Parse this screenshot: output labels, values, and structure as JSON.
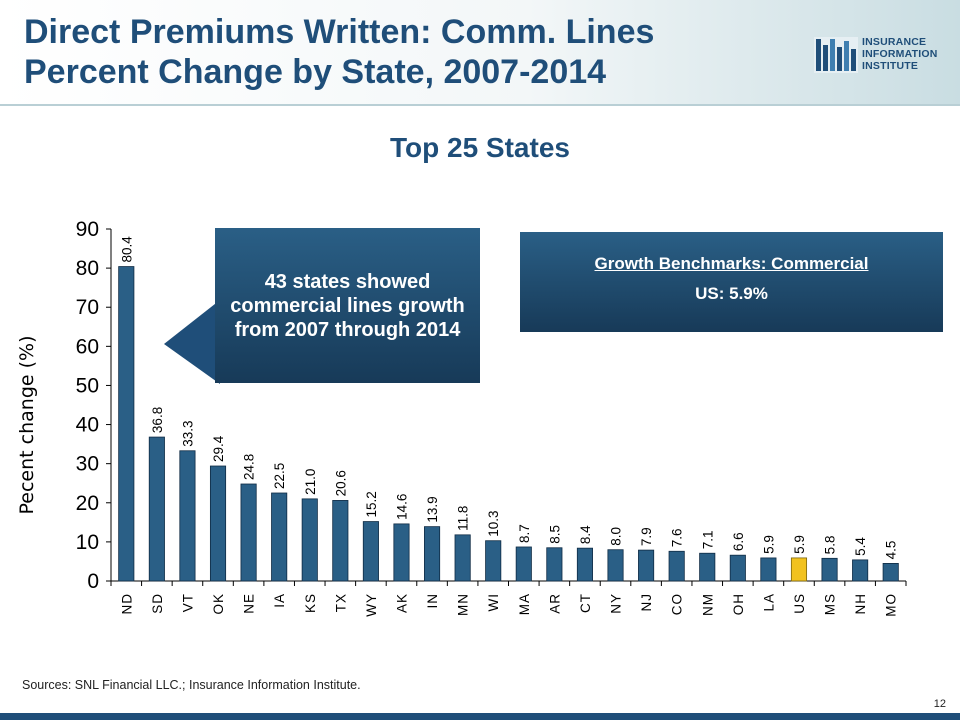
{
  "slide": {
    "title_line1": "Direct Premiums Written: Comm. Lines",
    "title_line2": "Percent Change by State, 2007-2014",
    "subtitle": "Top 25 States",
    "logo_lines": [
      "INSURANCE",
      "INFORMATION",
      "INSTITUTE"
    ],
    "callout": "43 states showed commercial lines growth from 2007 through 2014",
    "benchmark_title": "Growth Benchmarks: Commercial",
    "benchmark_value": "US: 5.9%",
    "sources": "Sources:  SNL Financial LLC.; Insurance Information Institute.",
    "page_number": "12"
  },
  "colors": {
    "title": "#1f4e79",
    "bar": "#2a5f86",
    "bar_highlight": "#f2c21e",
    "callout_bg": "#1f4e79"
  },
  "chart_data": {
    "type": "bar",
    "title": "",
    "ylabel": "Pecent change (%)",
    "xlabel": "",
    "ylim": [
      0,
      90
    ],
    "yticks": [
      0,
      10,
      20,
      30,
      40,
      50,
      60,
      70,
      80,
      90
    ],
    "categories": [
      "ND",
      "SD",
      "VT",
      "OK",
      "NE",
      "IA",
      "KS",
      "TX",
      "WY",
      "AK",
      "IN",
      "MN",
      "WI",
      "MA",
      "AR",
      "CT",
      "NY",
      "NJ",
      "CO",
      "NM",
      "OH",
      "LA",
      "US",
      "MS",
      "NH",
      "MO"
    ],
    "values": [
      80.4,
      36.8,
      33.3,
      29.4,
      24.8,
      22.5,
      21.0,
      20.6,
      15.2,
      14.6,
      13.9,
      11.8,
      10.3,
      8.7,
      8.5,
      8.4,
      8.0,
      7.9,
      7.6,
      7.1,
      6.6,
      5.9,
      5.9,
      5.8,
      5.4,
      4.5
    ],
    "value_labels": [
      "80.4",
      "36.8",
      "33.3",
      "29.4",
      "24.8",
      "22.5",
      "21.0",
      "20.6",
      "15.2",
      "14.6",
      "13.9",
      "11.8",
      "10.3",
      "8.7",
      "8.5",
      "8.4",
      "8.0",
      "7.9",
      "7.6",
      "7.1",
      "6.6",
      "5.9",
      "5.9",
      "5.8",
      "5.4",
      "4.5"
    ],
    "highlight": "US",
    "grid": false,
    "legend": "none"
  }
}
